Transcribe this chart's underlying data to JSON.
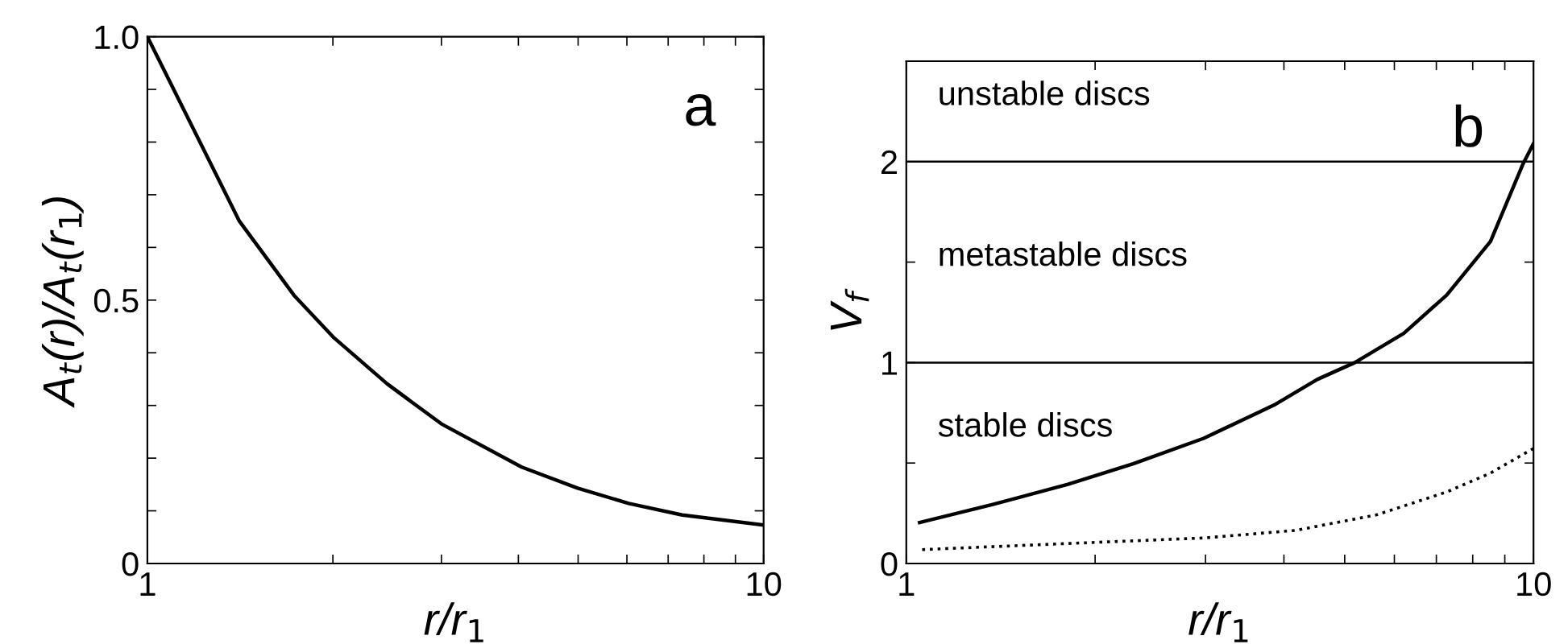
{
  "chart_data": [
    {
      "type": "line",
      "log": "x",
      "xlabel": "r/r$_{1}$",
      "ylabel": "A$_{t}$(r)/A$_{t}$(r$_{1}$)",
      "annotations": [
        "a"
      ],
      "xlim": [
        1,
        10
      ],
      "xticks": [
        1,
        {
          "value": 2,
          "label": null
        },
        {
          "value": 3,
          "label": null
        },
        {
          "value": 4,
          "label": null
        },
        {
          "value": 5,
          "label": null
        },
        {
          "value": 6,
          "label": null
        },
        {
          "value": 7,
          "label": null
        },
        {
          "value": 8,
          "label": null
        },
        {
          "value": 9,
          "label": null
        },
        10
      ],
      "ylim": [
        0,
        1.0
      ],
      "yticks": [
        0,
        {
          "value": 0.1,
          "label": null
        },
        {
          "value": 0.2,
          "label": null
        },
        {
          "value": 0.3,
          "label": null
        },
        {
          "value": 0.4,
          "label": null
        },
        {
          "value": 0.5,
          "label": "0.5"
        },
        {
          "value": 0.6,
          "label": null
        },
        {
          "value": 0.7,
          "label": null
        },
        {
          "value": 0.8,
          "label": null
        },
        {
          "value": 0.9,
          "label": null
        },
        {
          "value": 1.0,
          "label": "1.0"
        }
      ],
      "grid": false,
      "marker": "none",
      "series": [
        {
          "color": "#000000",
          "line_style": "solid",
          "x": [
            1,
            1.41,
            1.73,
            2.01,
            2.45,
            3.0,
            4.05,
            4.99,
            6.04,
            7.38,
            10
          ],
          "values": [
            1.0,
            0.65,
            0.509,
            0.428,
            0.341,
            0.265,
            0.183,
            0.143,
            0.114,
            0.092,
            0.073
          ]
        }
      ]
    },
    {
      "type": "line",
      "log": "x",
      "xlabel": "r/r$_{1}$",
      "ylabel": "V$_{f}$",
      "annotations": [
        "b",
        "unstable discs",
        "metastable discs",
        "stable discs"
      ],
      "xlim": [
        1,
        10
      ],
      "xticks": [
        1,
        {
          "value": 2,
          "label": null
        },
        {
          "value": 3,
          "label": null
        },
        {
          "value": 4,
          "label": null
        },
        {
          "value": 5,
          "label": null
        },
        {
          "value": 6,
          "label": null
        },
        {
          "value": 7,
          "label": null
        },
        {
          "value": 8,
          "label": null
        },
        {
          "value": 9,
          "label": null
        },
        10
      ],
      "ylim": [
        0,
        2.5
      ],
      "yticks": [
        0,
        {
          "value": 0.5,
          "label": null
        },
        1,
        {
          "value": 1.5,
          "label": null
        },
        2
      ],
      "grid": false,
      "marker": "none",
      "ref_lines": [
        {
          "axis": "y",
          "value": 1,
          "label": null,
          "color": "#000000"
        },
        {
          "axis": "y",
          "value": 2,
          "label": null,
          "color": "#000000"
        }
      ],
      "series": [
        {
          "color": "#000000",
          "line_style": "solid",
          "x": [
            1.05,
            1.37,
            1.81,
            2.3,
            2.98,
            3.86,
            4.52,
            5.19,
            6.21,
            7.27,
            8.54,
            9.61,
            10
          ],
          "values": [
            0.204,
            0.293,
            0.394,
            0.496,
            0.623,
            0.789,
            0.916,
            1.0,
            1.145,
            1.336,
            1.603,
            1.985,
            2.09
          ]
        },
        {
          "color": "#000000",
          "line_style": "dotted",
          "x": [
            1.06,
            1.89,
            2.98,
            4.18,
            5.62,
            7.27,
            8.54,
            10
          ],
          "values": [
            0.069,
            0.102,
            0.127,
            0.165,
            0.242,
            0.356,
            0.45,
            0.573
          ]
        }
      ]
    }
  ]
}
